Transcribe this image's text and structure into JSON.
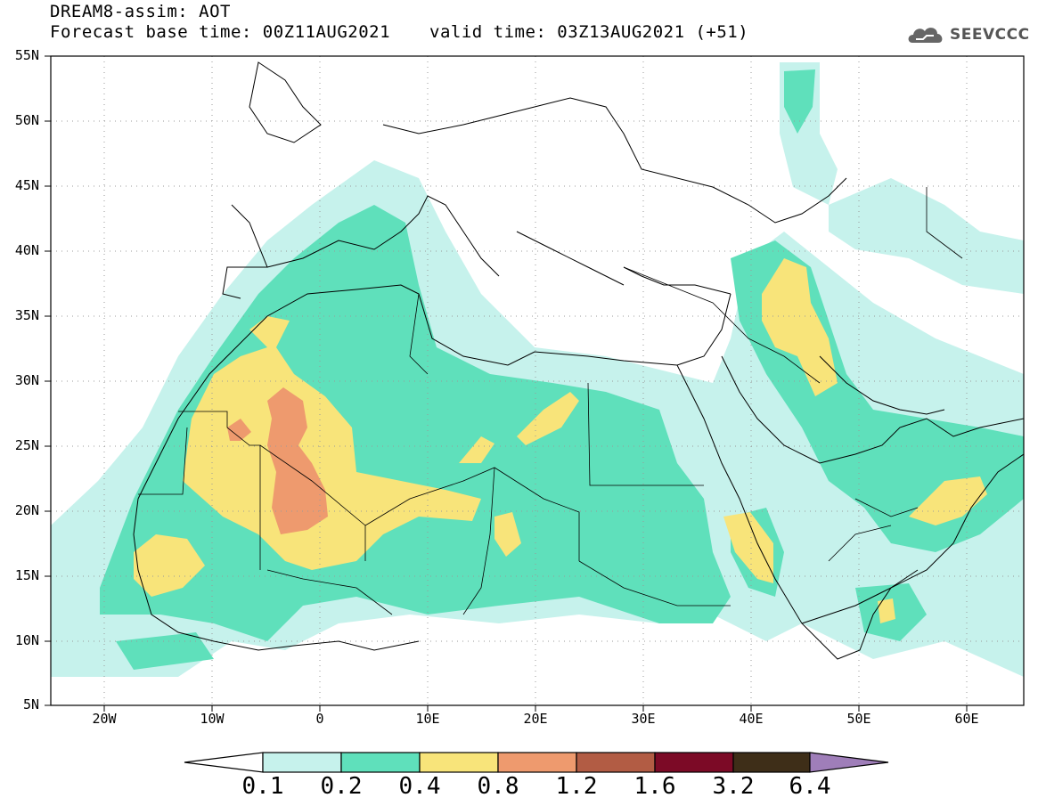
{
  "title": {
    "line1": "DREAM8-assim: AOT",
    "line2": "Forecast base time: 00Z11AUG2021",
    "valid": "valid time: 03Z13AUG2021 (+51)"
  },
  "logo": {
    "text": "SEEVCCC",
    "icon": "cloud-logo-icon"
  },
  "map": {
    "lon_range": [
      -25,
      65
    ],
    "lat_range": [
      5,
      55
    ],
    "grid": "dotted",
    "y_ticks": [
      "55N",
      "50N",
      "45N",
      "40N",
      "35N",
      "30N",
      "25N",
      "20N",
      "15N",
      "10N",
      "5N"
    ],
    "x_ticks": [
      "20W",
      "10W",
      "0",
      "10E",
      "20E",
      "30E",
      "40E",
      "50E",
      "60E"
    ]
  },
  "colorbar": {
    "labels": [
      "0.1",
      "0.2",
      "0.4",
      "0.8",
      "1.2",
      "1.6",
      "3.2",
      "6.4"
    ],
    "colors": [
      "#c6f2ec",
      "#5fe0bb",
      "#f8e47a",
      "#ee9a6e",
      "#b25c44",
      "#7c0a26",
      "#3e2e18",
      "#9f7eb9"
    ],
    "below_color": "#ffffff"
  }
}
